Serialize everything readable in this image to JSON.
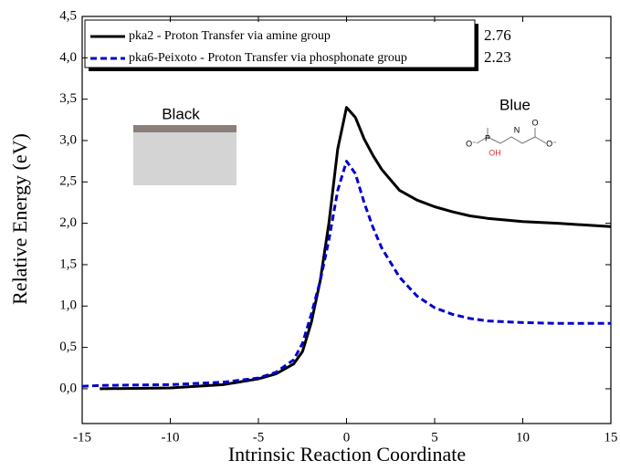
{
  "chart_data": {
    "type": "line",
    "x_label": "Intrinsic Reaction Coordinate",
    "y_label": "Relative Energy (eV)",
    "x": [
      -15,
      -14,
      -10,
      -7,
      -5,
      -4,
      -3,
      -2.5,
      -2,
      -1.5,
      -1,
      -0.5,
      0,
      0.5,
      1,
      1.5,
      2,
      3,
      4,
      5,
      6,
      7,
      8,
      10,
      12,
      15
    ],
    "series": [
      {
        "name": "pka2 - Proton Transfer via amine group",
        "color": "#000000",
        "dash": false,
        "values": [
          null,
          0.0,
          0.01,
          0.05,
          0.12,
          0.18,
          0.3,
          0.45,
          0.8,
          1.3,
          2.0,
          2.9,
          3.4,
          3.28,
          3.02,
          2.82,
          2.65,
          2.4,
          2.28,
          2.2,
          2.14,
          2.09,
          2.06,
          2.02,
          2.0,
          1.96
        ]
      },
      {
        "name": "pka6-Peixoto - Proton Transfer via phosphonate group",
        "color": "#0000cc",
        "dash": true,
        "values": [
          0.03,
          0.04,
          0.05,
          0.08,
          0.13,
          0.2,
          0.35,
          0.55,
          0.9,
          1.3,
          1.8,
          2.4,
          2.75,
          2.6,
          2.25,
          1.95,
          1.7,
          1.35,
          1.12,
          0.98,
          0.9,
          0.85,
          0.82,
          0.8,
          0.79,
          0.79
        ]
      }
    ],
    "legend_values": [
      "2.76",
      "2.23"
    ],
    "annotations": [
      "Black",
      "Blue"
    ],
    "molecule_labels": [
      "O⁻",
      "P",
      "OH",
      "N",
      "O",
      "O⁻"
    ],
    "xlim": [
      -15,
      15
    ],
    "xticks": [
      -15,
      -10,
      -5,
      0,
      5,
      10,
      15
    ],
    "ylim": [
      -0.42,
      4.5
    ],
    "yticks": [
      {
        "value": 0,
        "label": "0,0"
      },
      {
        "value": 0.5,
        "label": "0,5"
      },
      {
        "value": 1,
        "label": "1,0"
      },
      {
        "value": 1.5,
        "label": "1,5"
      },
      {
        "value": 2,
        "label": "2,0"
      },
      {
        "value": 2.5,
        "label": "2,5"
      },
      {
        "value": 3,
        "label": "3,0"
      },
      {
        "value": 3.5,
        "label": "3,5"
      },
      {
        "value": 4,
        "label": "4,0"
      },
      {
        "value": 4.5,
        "label": "4,5"
      }
    ]
  }
}
